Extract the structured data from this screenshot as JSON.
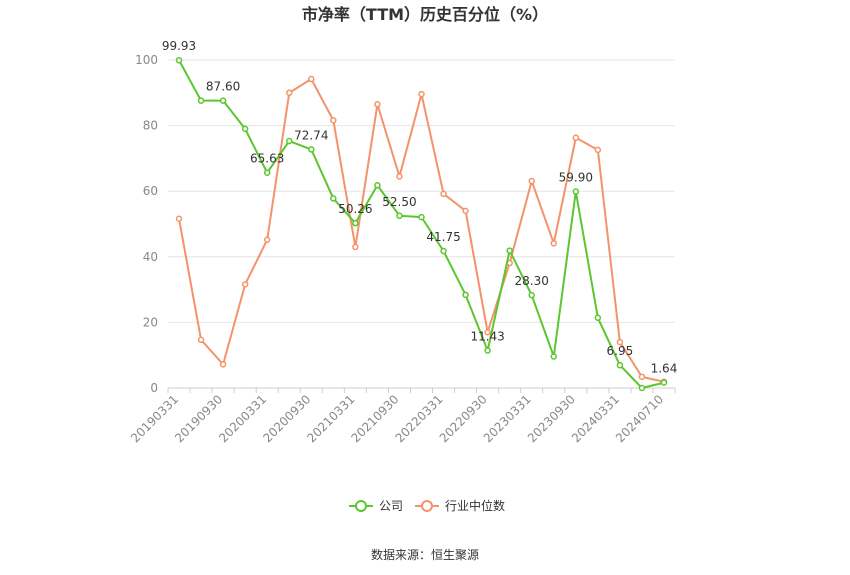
{
  "chart_data": {
    "type": "line",
    "title": "市净率（TTM）历史百分位（%）",
    "source_label": "数据来源：恒生聚源",
    "ylim": [
      0,
      100
    ],
    "yticks": [
      "0",
      "20",
      "40",
      "60",
      "80",
      "100"
    ],
    "xtick_labels": [
      "20190331",
      "20190930",
      "20200331",
      "20200930",
      "20210331",
      "20210930",
      "20220331",
      "20220930",
      "20230331",
      "20230930",
      "20240331",
      "20240710"
    ],
    "legend_position": "bottom",
    "x": [
      "20190331",
      "20190630",
      "20190930",
      "20191231",
      "20200331",
      "20200630",
      "20200930",
      "20201231",
      "20210331",
      "20210630",
      "20210930",
      "20211231",
      "20220331",
      "20220630",
      "20220930",
      "20221231",
      "20230331",
      "20230630",
      "20230930",
      "20231231",
      "20240331",
      "20240630",
      "20240710"
    ],
    "series": [
      {
        "name": "公司",
        "color": "#5cc62f",
        "values": [
          99.93,
          87.6,
          87.6,
          79.0,
          65.63,
          75.3,
          72.74,
          57.8,
          50.26,
          61.8,
          52.5,
          52.1,
          41.75,
          28.4,
          11.43,
          41.9,
          28.3,
          9.6,
          59.9,
          21.4,
          6.95,
          0.0,
          1.64
        ],
        "labels": [
          "99.93",
          "",
          "87.60",
          "",
          "65.63",
          "",
          "72.74",
          "",
          "50.26",
          "",
          "52.50",
          "",
          "41.75",
          "",
          "11.43",
          "",
          "28.30",
          "",
          "59.90",
          "",
          "6.95",
          "",
          "1.64"
        ]
      },
      {
        "name": "行业中位数",
        "color": "#f4936b",
        "values": [
          51.6,
          14.7,
          7.2,
          31.6,
          45.2,
          90.0,
          94.2,
          81.6,
          43.0,
          86.5,
          64.5,
          89.6,
          59.2,
          54.0,
          17.0,
          38.1,
          63.1,
          44.1,
          76.3,
          72.6,
          14.0,
          3.4,
          1.9
        ]
      }
    ]
  }
}
